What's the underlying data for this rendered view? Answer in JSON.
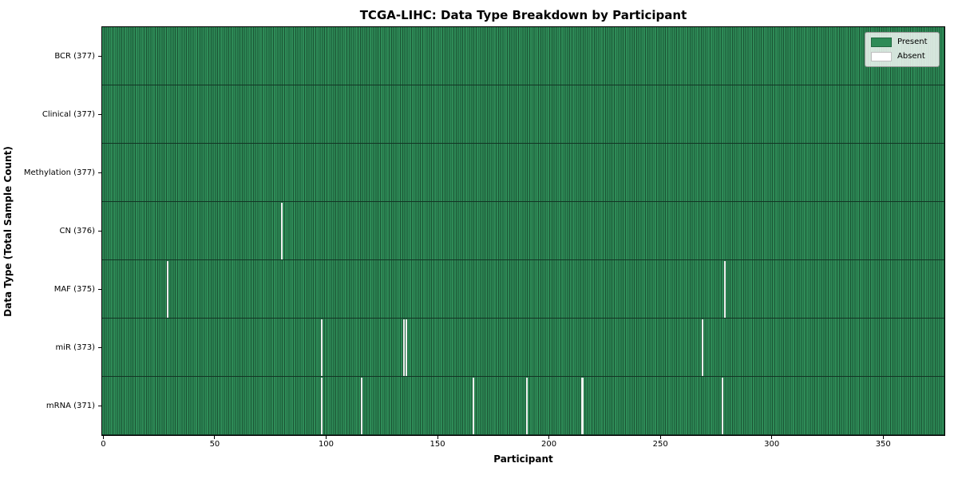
{
  "chart_data": {
    "type": "heatmap",
    "title": "TCGA-LIHC: Data Type Breakdown by Participant",
    "xlabel": "Participant",
    "ylabel": "Data Type (Total Sample Count)",
    "n_participants": 377,
    "xlim": [
      -0.5,
      377.5
    ],
    "x_ticks": [
      0,
      50,
      100,
      150,
      200,
      250,
      300,
      350
    ],
    "grid": false,
    "legend_position": "upper right",
    "legend": [
      {
        "label": "Present",
        "color": "#2e8b57"
      },
      {
        "label": "Absent",
        "color": "#ffffff"
      }
    ],
    "rows": [
      {
        "label": "BCR (377)",
        "data_type": "BCR",
        "present_count": 377,
        "absent_participants": []
      },
      {
        "label": "Clinical (377)",
        "data_type": "Clinical",
        "present_count": 377,
        "absent_participants": []
      },
      {
        "label": "Methylation (377)",
        "data_type": "Methylation",
        "present_count": 377,
        "absent_participants": []
      },
      {
        "label": "CN (376)",
        "data_type": "CN",
        "present_count": 376,
        "absent_participants": [
          80
        ]
      },
      {
        "label": "MAF (375)",
        "data_type": "MAF",
        "present_count": 375,
        "absent_participants": [
          29,
          279
        ]
      },
      {
        "label": "miR (373)",
        "data_type": "miR",
        "present_count": 373,
        "absent_participants": [
          98,
          135,
          136,
          269
        ]
      },
      {
        "label": "mRNA (371)",
        "data_type": "mRNA",
        "present_count": 371,
        "absent_participants": [
          98,
          116,
          166,
          190,
          215,
          278
        ]
      }
    ],
    "colors": {
      "present": "#2e8b57",
      "absent": "#ffffff",
      "cell_edge": "#1b5434",
      "row_edge": "#123524",
      "spine": "#000000"
    }
  }
}
